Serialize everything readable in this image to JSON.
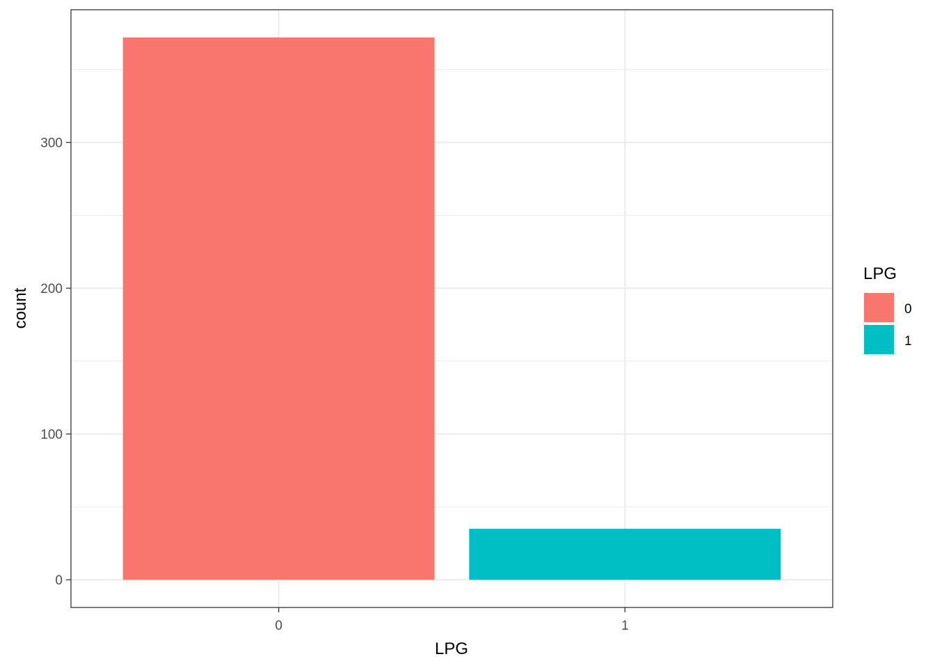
{
  "chart_data": {
    "type": "bar",
    "categories": [
      "0",
      "1"
    ],
    "values": [
      372,
      35
    ],
    "colors": [
      "#F8766D",
      "#00BFC4"
    ],
    "xlabel": "LPG",
    "ylabel": "count",
    "ylim": [
      -19,
      391
    ],
    "yticks": [
      0,
      100,
      200,
      300
    ],
    "ytick_labels": [
      "0",
      "100",
      "200",
      "300"
    ],
    "grid": true,
    "legend": {
      "title": "LPG",
      "position": "right",
      "items": [
        {
          "label": "0",
          "color": "#F8766D"
        },
        {
          "label": "1",
          "color": "#00BFC4"
        }
      ]
    }
  }
}
